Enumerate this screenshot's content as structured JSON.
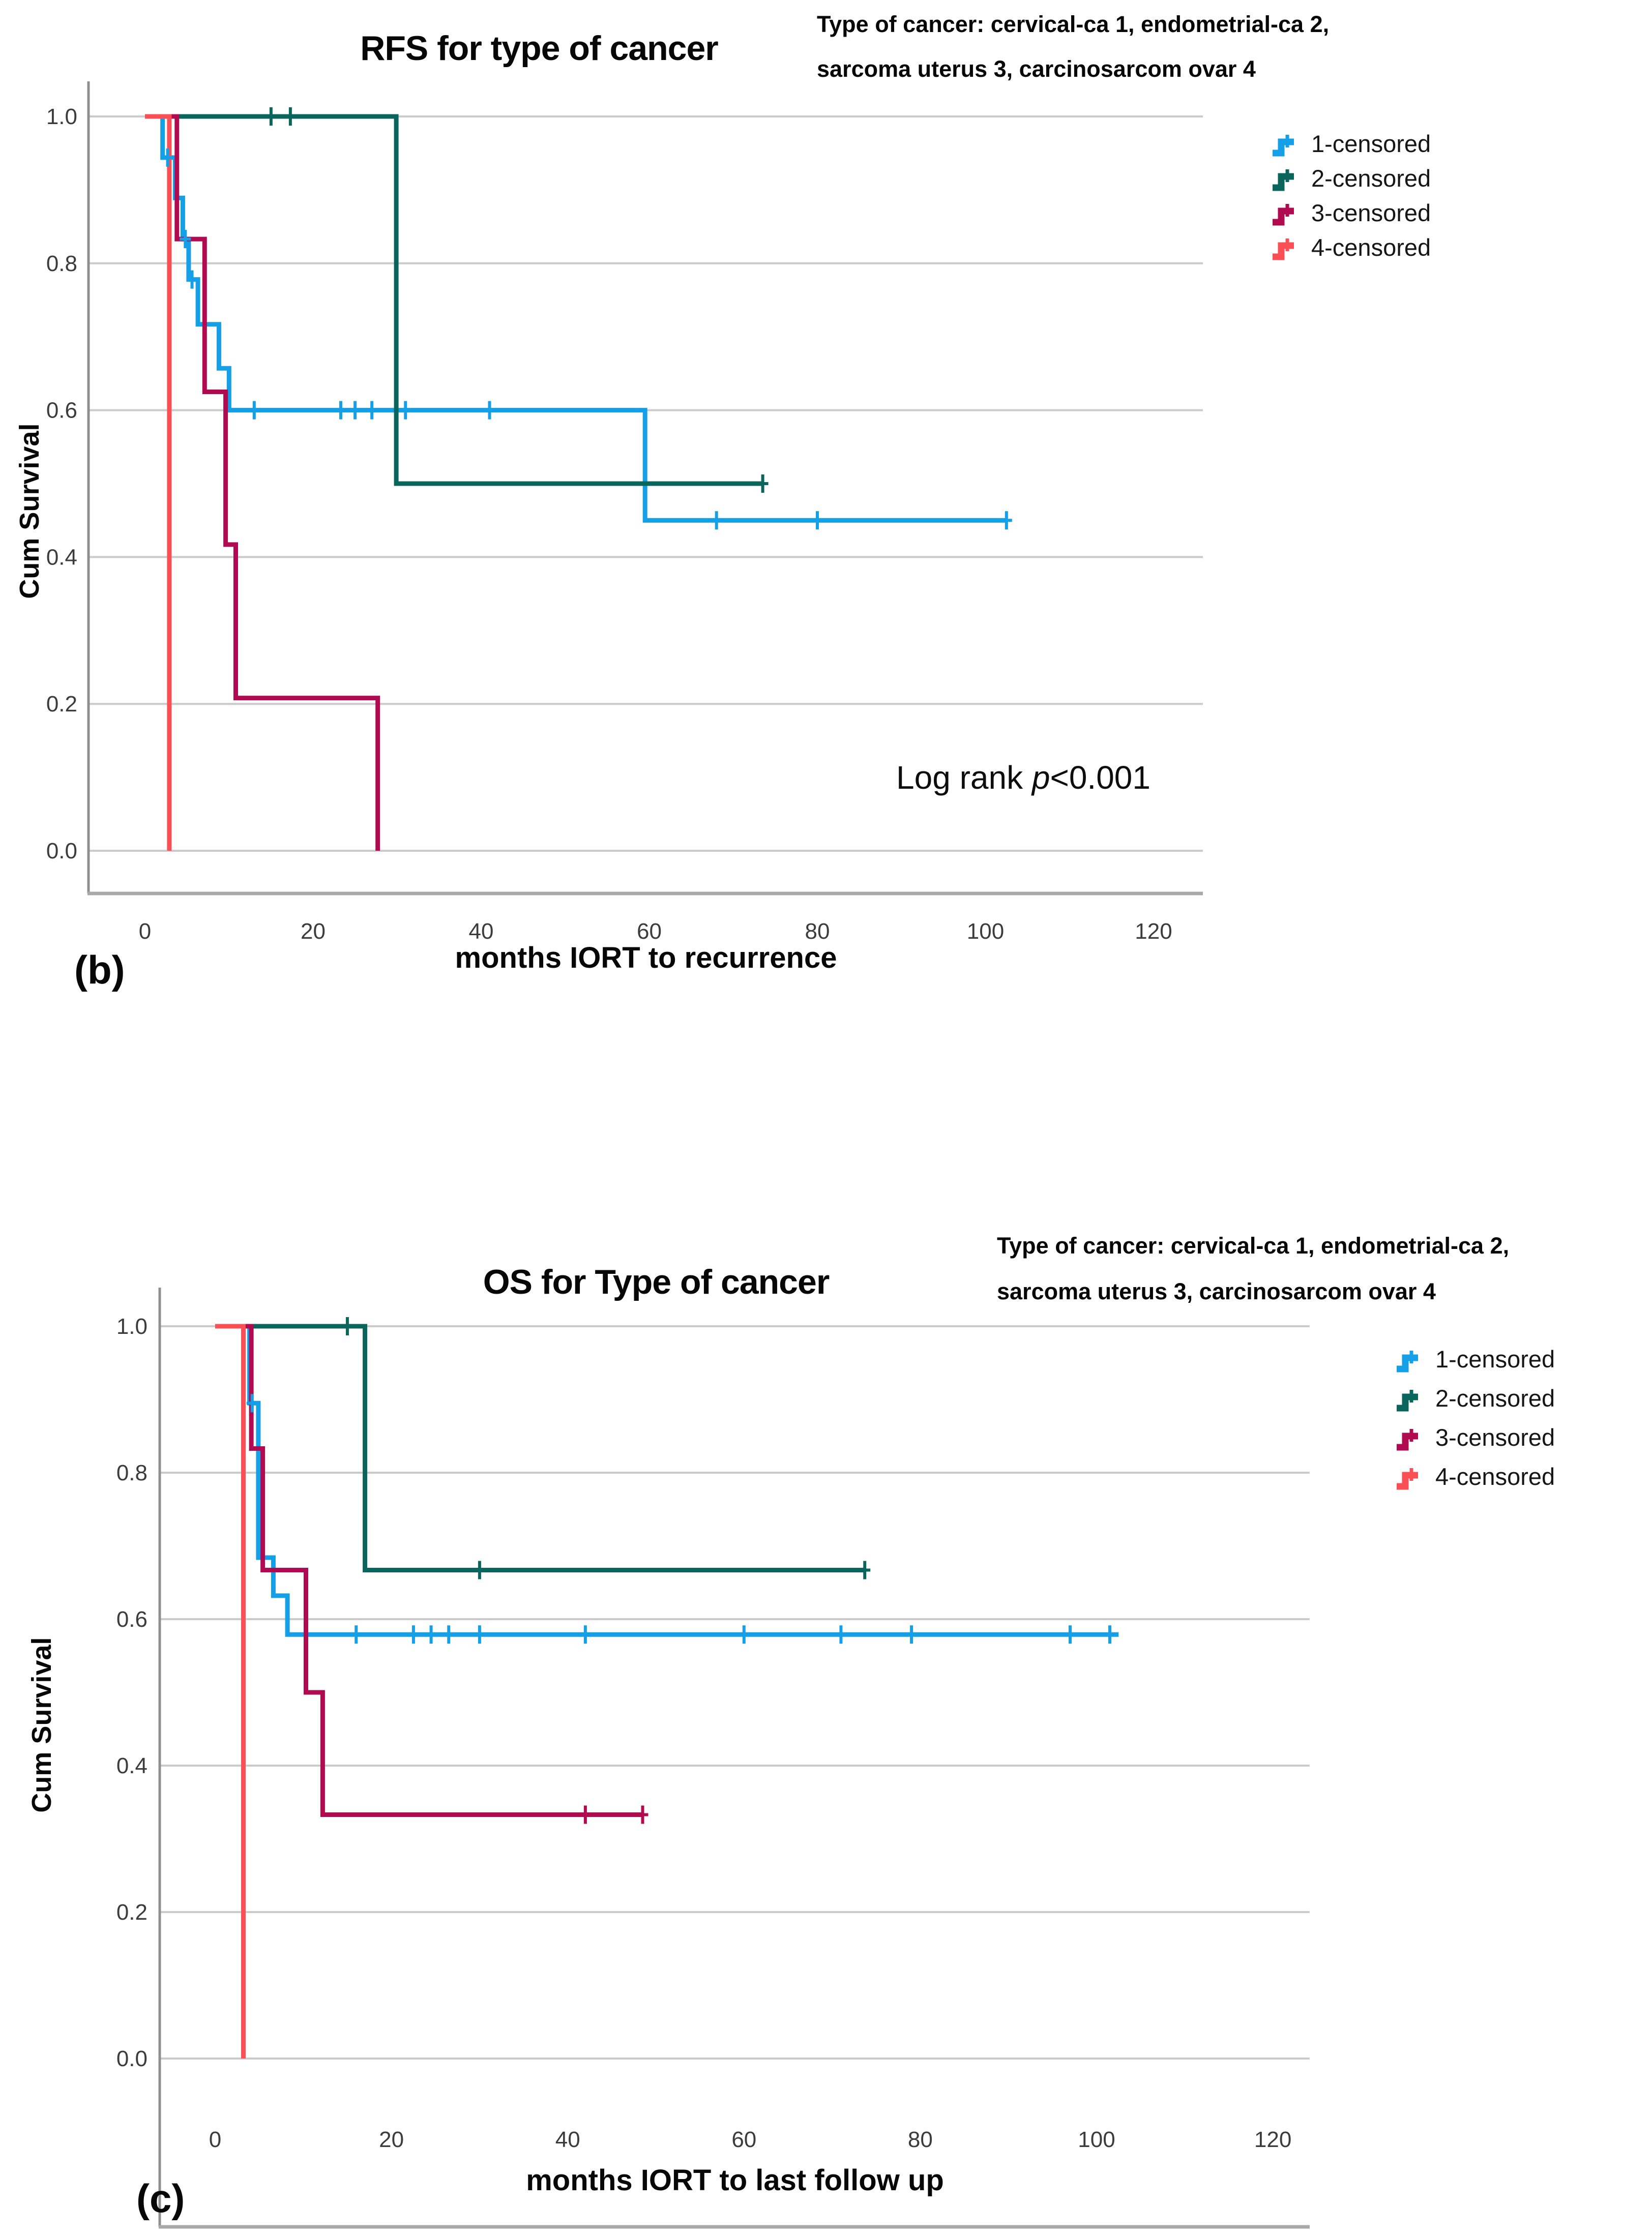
{
  "panel_labels": {
    "b": "(b)",
    "c": "(c)"
  },
  "colors": {
    "series_1_blue": "#149FE6",
    "series_2_teal": "#0A655C",
    "series_3_maroon": "#B00B51",
    "series_4_red": "#FB4F56",
    "grid": "#CBCBCB",
    "axis_line": "#8F8F8F",
    "frame_line": "#A9A9A9",
    "tick_text": "#3C3C3C",
    "label_text": "#070707"
  },
  "chart_data": [
    {
      "type": "line",
      "subtype": "kaplan-meier-step",
      "panel": "(b)",
      "title": "RFS for type of cancer",
      "subtitle_line1": "Type of cancer: cervical-ca 1, endometrial-ca 2,",
      "subtitle_line2": "sarcoma uterus 3, carcinosarcom ovar 4",
      "xlabel": "months IORT to recurrence",
      "ylabel": "Cum Survival",
      "annotation": {
        "pre": "Log rank ",
        "italic": "p",
        "post": "<0.001"
      },
      "xticks": [
        0,
        20,
        40,
        60,
        80,
        100,
        120
      ],
      "ytick_labels": [
        "0.0",
        "0.2",
        "0.4",
        "0.6",
        "0.8",
        "1.0"
      ],
      "xlim": [
        0,
        120
      ],
      "ylim": [
        0.0,
        1.0
      ],
      "grid": "horizontal",
      "legend_position": "right",
      "legend_items": [
        "1-censored",
        "2-censored",
        "3-censored",
        "4-censored"
      ],
      "series": [
        {
          "id": 1,
          "name": "cervical-ca",
          "legend_label": "1-censored",
          "color_key": "series_1_blue",
          "steps": [
            [
              0,
              1
            ],
            [
              2.1,
              1
            ],
            [
              2.1,
              0.944
            ],
            [
              3.6,
              0.944
            ],
            [
              3.6,
              0.889
            ],
            [
              4.5,
              0.889
            ],
            [
              4.5,
              0.833
            ],
            [
              5.2,
              0.833
            ],
            [
              5.2,
              0.778
            ],
            [
              6.3,
              0.778
            ],
            [
              6.3,
              0.717
            ],
            [
              8.8,
              0.717
            ],
            [
              8.8,
              0.657
            ],
            [
              10,
              0.657
            ],
            [
              10,
              0.6
            ],
            [
              59.5,
              0.6
            ],
            [
              59.5,
              0.45
            ],
            [
              102.5,
              0.45
            ]
          ],
          "censors": [
            [
              2.7,
              0.944
            ],
            [
              4.8,
              0.833
            ],
            [
              5.6,
              0.778
            ],
            [
              13,
              0.6
            ],
            [
              23.3,
              0.6
            ],
            [
              25,
              0.6
            ],
            [
              27,
              0.6
            ],
            [
              31,
              0.6
            ],
            [
              41,
              0.6
            ],
            [
              68,
              0.45
            ],
            [
              80,
              0.45
            ],
            [
              102.5,
              0.45
            ]
          ]
        },
        {
          "id": 2,
          "name": "endometrial-ca",
          "legend_label": "2-censored",
          "color_key": "series_2_teal",
          "steps": [
            [
              0,
              1
            ],
            [
              29.9,
              1
            ],
            [
              29.9,
              0.5
            ],
            [
              73.5,
              0.5
            ]
          ],
          "censors": [
            [
              15,
              1
            ],
            [
              17.3,
              1
            ],
            [
              73.5,
              0.5
            ]
          ]
        },
        {
          "id": 3,
          "name": "sarcoma uterus",
          "legend_label": "3-censored",
          "color_key": "series_3_maroon",
          "steps": [
            [
              0,
              1
            ],
            [
              3.8,
              1
            ],
            [
              3.8,
              0.833
            ],
            [
              7.1,
              0.833
            ],
            [
              7.1,
              0.625
            ],
            [
              9.6,
              0.625
            ],
            [
              9.6,
              0.417
            ],
            [
              10.8,
              0.417
            ],
            [
              10.8,
              0.208
            ],
            [
              27.7,
              0.208
            ],
            [
              27.7,
              0
            ]
          ],
          "censors": []
        },
        {
          "id": 4,
          "name": "carcinosarcom ovar",
          "legend_label": "4-censored",
          "color_key": "series_4_red",
          "steps": [
            [
              0,
              1
            ],
            [
              2.9,
              1
            ],
            [
              2.9,
              0
            ]
          ],
          "censors": []
        }
      ]
    },
    {
      "type": "line",
      "subtype": "kaplan-meier-step",
      "panel": "(c)",
      "title": "OS for Type of cancer",
      "subtitle_line1": "Type of cancer: cervical-ca 1, endometrial-ca 2,",
      "subtitle_line2": "sarcoma uterus 3, carcinosarcom ovar 4",
      "xlabel": "months IORT to last follow up",
      "ylabel": "Cum Survival",
      "xticks": [
        0,
        20,
        40,
        60,
        80,
        100,
        120
      ],
      "ytick_labels": [
        "0.0",
        "0.2",
        "0.4",
        "0.6",
        "0.8",
        "1.0"
      ],
      "xlim": [
        0,
        120
      ],
      "ylim": [
        0.0,
        1.0
      ],
      "grid": "horizontal",
      "legend_position": "right",
      "legend_items": [
        "1-censored",
        "2-censored",
        "3-censored",
        "4-censored"
      ],
      "series": [
        {
          "id": 1,
          "name": "cervical-ca",
          "legend_label": "1-censored",
          "color_key": "series_1_blue",
          "steps": [
            [
              0,
              1
            ],
            [
              3.9,
              1
            ],
            [
              3.9,
              0.895
            ],
            [
              4.9,
              0.895
            ],
            [
              4.9,
              0.684
            ],
            [
              6.6,
              0.684
            ],
            [
              6.6,
              0.632
            ],
            [
              8.2,
              0.632
            ],
            [
              8.2,
              0.579
            ],
            [
              102.5,
              0.579
            ]
          ],
          "censors": [
            [
              4.2,
              0.895
            ],
            [
              16,
              0.579
            ],
            [
              22.5,
              0.579
            ],
            [
              24.5,
              0.579
            ],
            [
              26.5,
              0.579
            ],
            [
              30,
              0.579
            ],
            [
              42,
              0.579
            ],
            [
              60,
              0.579
            ],
            [
              71,
              0.579
            ],
            [
              79,
              0.579
            ],
            [
              97,
              0.579
            ],
            [
              101.5,
              0.579
            ]
          ]
        },
        {
          "id": 2,
          "name": "endometrial-ca",
          "legend_label": "2-censored",
          "color_key": "series_2_teal",
          "steps": [
            [
              0,
              1
            ],
            [
              17,
              1
            ],
            [
              17,
              0.667
            ],
            [
              73.7,
              0.667
            ]
          ],
          "censors": [
            [
              15,
              1
            ],
            [
              30,
              0.667
            ],
            [
              73.7,
              0.667
            ]
          ]
        },
        {
          "id": 3,
          "name": "sarcoma uterus",
          "legend_label": "3-censored",
          "color_key": "series_3_maroon",
          "steps": [
            [
              0,
              1
            ],
            [
              4.1,
              1
            ],
            [
              4.1,
              0.833
            ],
            [
              5.4,
              0.833
            ],
            [
              5.4,
              0.667
            ],
            [
              10.3,
              0.667
            ],
            [
              10.3,
              0.5
            ],
            [
              12.2,
              0.5
            ],
            [
              12.2,
              0.333
            ],
            [
              48.5,
              0.333
            ]
          ],
          "censors": [
            [
              42,
              0.333
            ],
            [
              48.5,
              0.333
            ]
          ]
        },
        {
          "id": 4,
          "name": "carcinosarcom ovar",
          "legend_label": "4-censored",
          "color_key": "series_4_red",
          "steps": [
            [
              0,
              1
            ],
            [
              3.2,
              1
            ],
            [
              3.2,
              0
            ]
          ],
          "censors": []
        }
      ]
    }
  ]
}
